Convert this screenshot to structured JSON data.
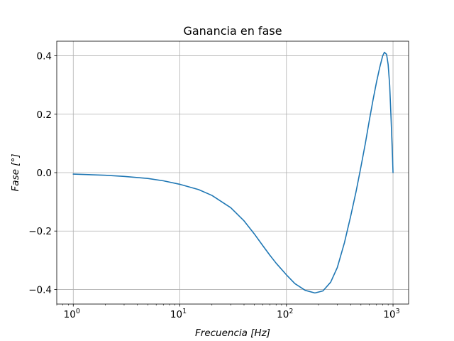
{
  "chart_data": {
    "type": "line",
    "title": "Ganancia en fase",
    "xlabel": "Frecuencia [Hz]",
    "ylabel": "Fase [°]",
    "xscale": "log",
    "xlim": [
      0.7,
      1400
    ],
    "ylim": [
      -0.45,
      0.45
    ],
    "grid": true,
    "x_ticks": [
      {
        "value": 1,
        "label": "10",
        "exp": "0"
      },
      {
        "value": 10,
        "label": "10",
        "exp": "1"
      },
      {
        "value": 100,
        "label": "10",
        "exp": "2"
      },
      {
        "value": 1000,
        "label": "10",
        "exp": "3"
      }
    ],
    "y_ticks": [
      {
        "value": 0.4,
        "label": "0.4"
      },
      {
        "value": 0.2,
        "label": "0.2"
      },
      {
        "value": 0.0,
        "label": "0.0"
      },
      {
        "value": -0.2,
        "label": "−0.2"
      },
      {
        "value": -0.4,
        "label": "−0.4"
      }
    ],
    "series": [
      {
        "color": "#1f77b4",
        "x": [
          1,
          2,
          3,
          5,
          7,
          10,
          15,
          20,
          30,
          40,
          50,
          60,
          70,
          80,
          100,
          120,
          150,
          185,
          220,
          260,
          300,
          350,
          400,
          450,
          500,
          550,
          600,
          650,
          700,
          750,
          800,
          830,
          870,
          900,
          930,
          960,
          990,
          1000
        ],
        "y": [
          -0.005,
          -0.009,
          -0.013,
          -0.02,
          -0.028,
          -0.04,
          -0.058,
          -0.078,
          -0.12,
          -0.165,
          -0.21,
          -0.25,
          -0.283,
          -0.31,
          -0.35,
          -0.38,
          -0.403,
          -0.412,
          -0.405,
          -0.375,
          -0.325,
          -0.24,
          -0.15,
          -0.065,
          0.02,
          0.1,
          0.18,
          0.25,
          0.31,
          0.36,
          0.4,
          0.412,
          0.405,
          0.37,
          0.3,
          0.18,
          0.05,
          0.0
        ]
      }
    ]
  }
}
